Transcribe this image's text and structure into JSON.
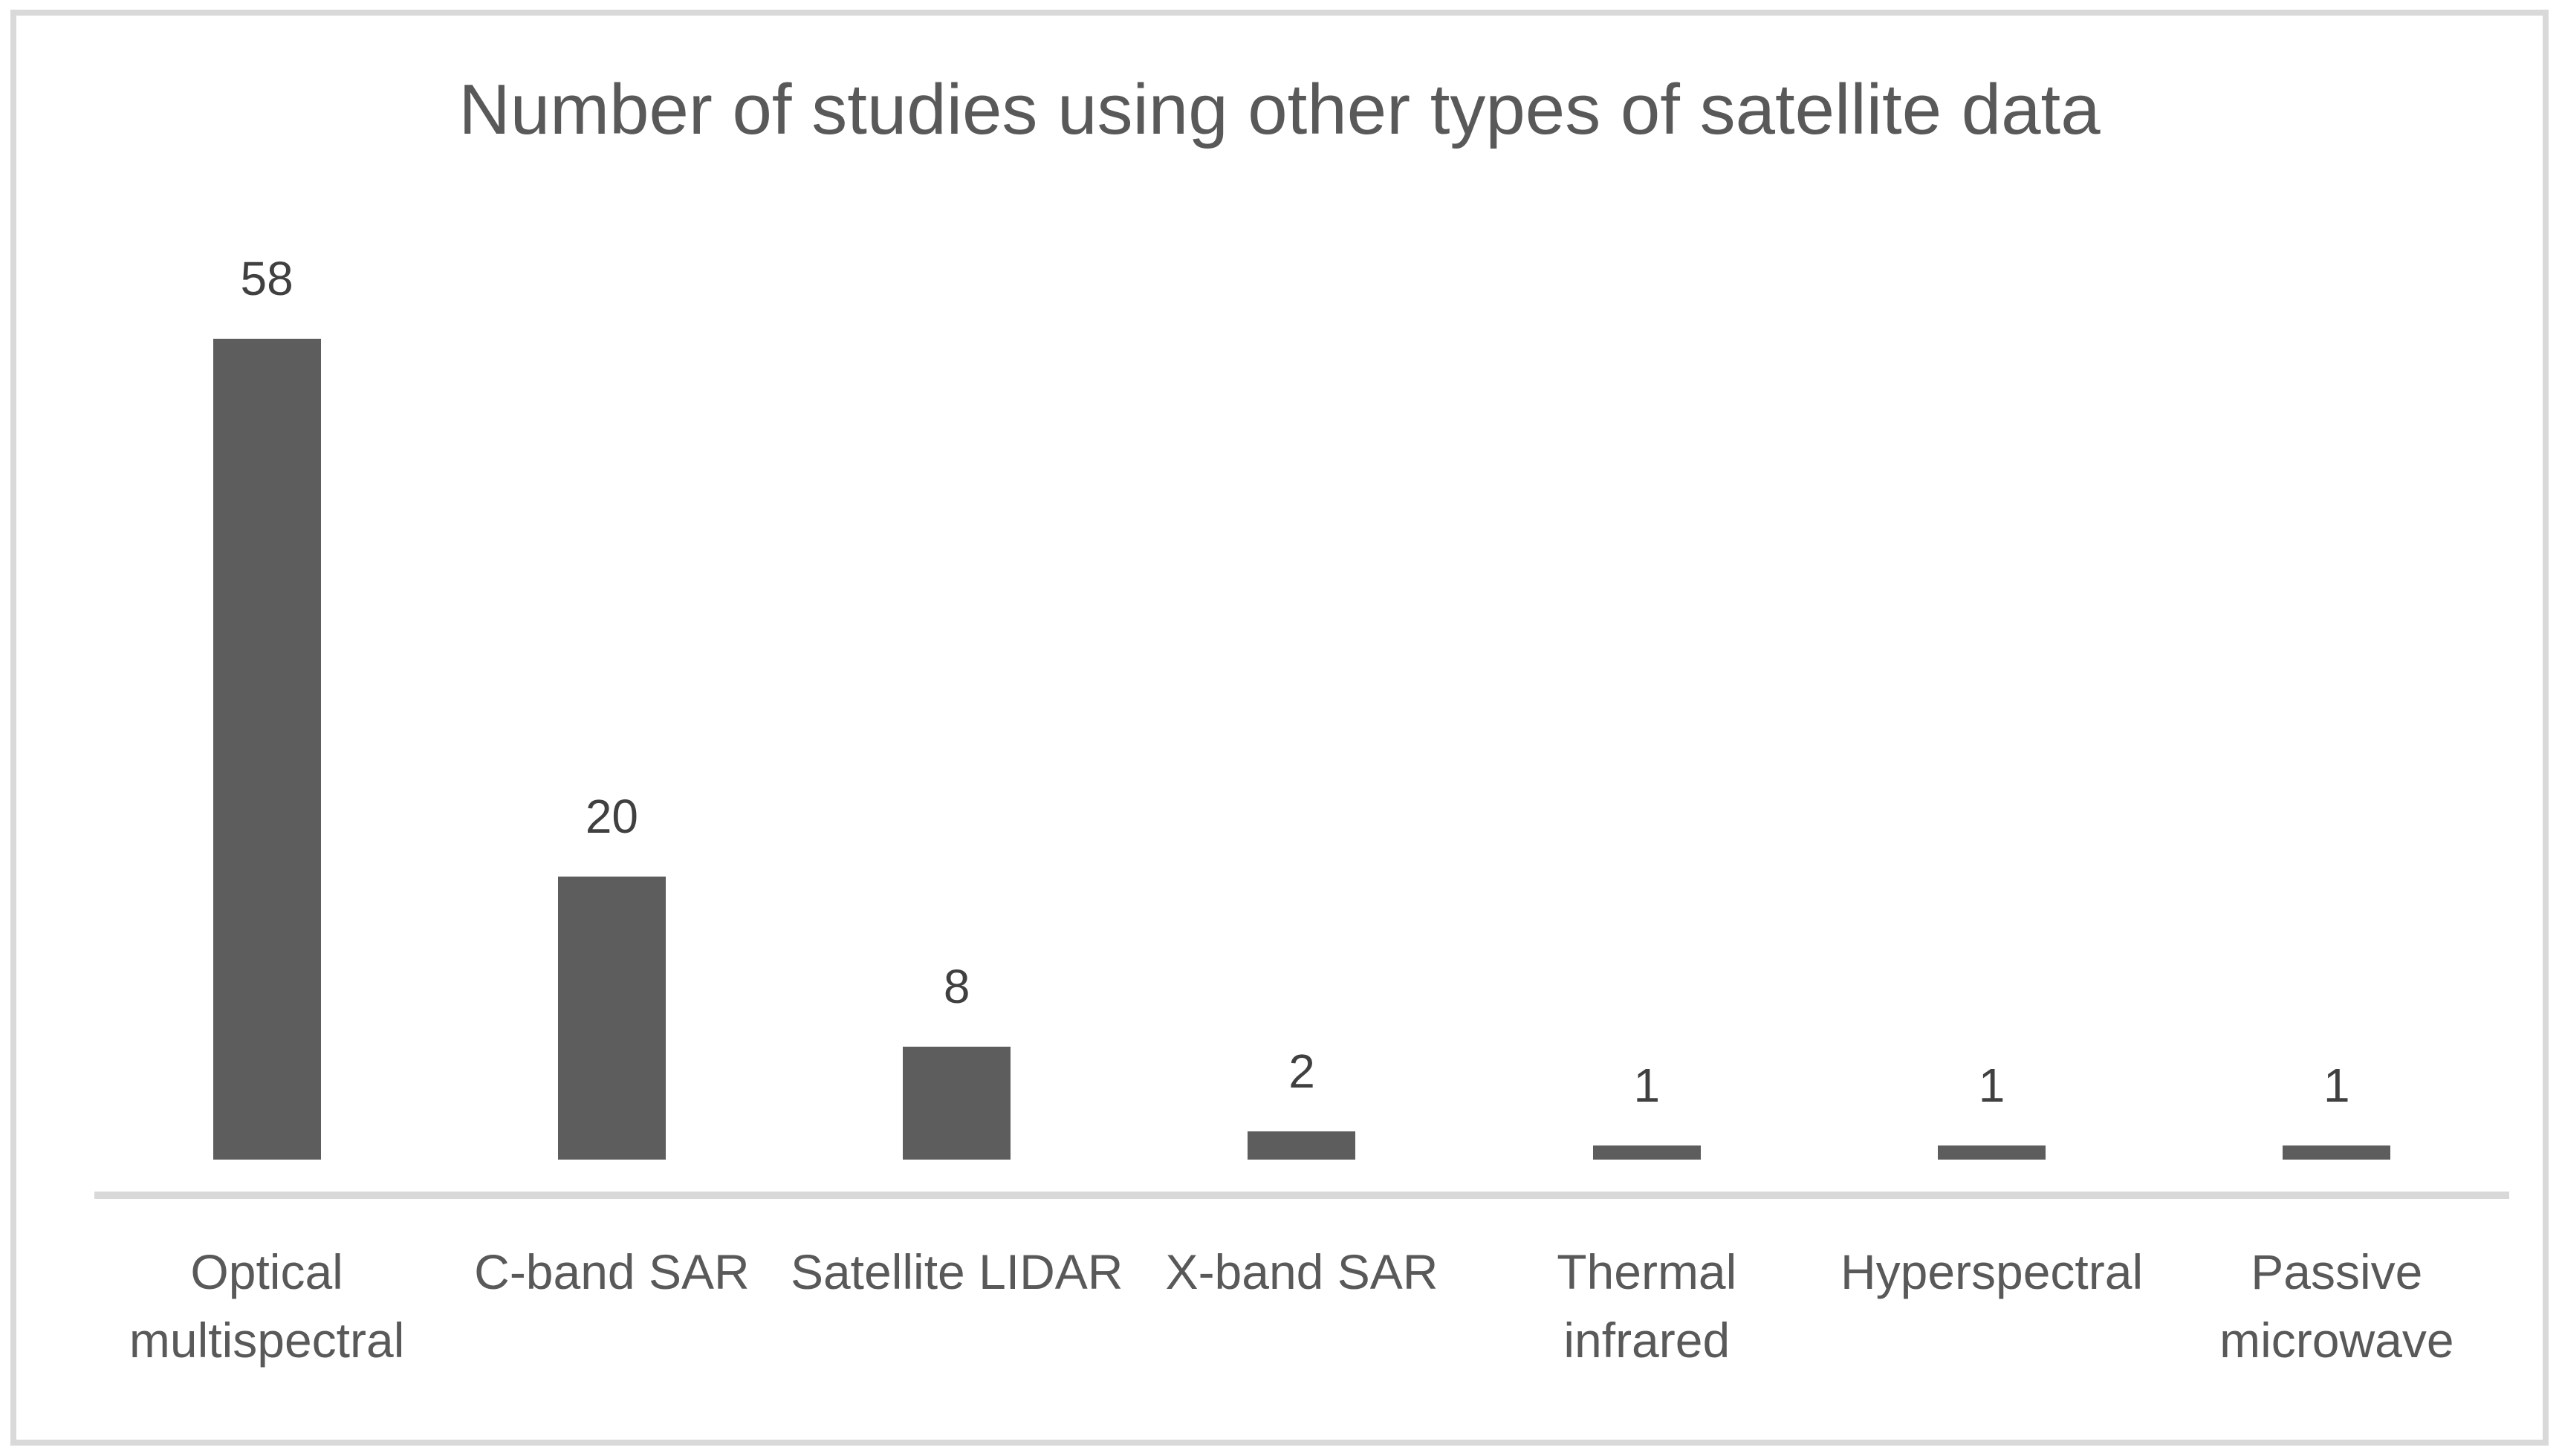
{
  "window": {
    "background": "#ffffff",
    "frame_border_color": "#d9d9d9"
  },
  "chart_data": {
    "type": "bar",
    "title": "Number of studies using other types of satellite data",
    "categories": [
      "Optical multispectral",
      "C-band SAR",
      "Satellite LIDAR",
      "X-band SAR",
      "Thermal infrared",
      "Hyperspectral",
      "Passive microwave"
    ],
    "values": [
      58,
      20,
      8,
      2,
      1,
      1,
      1
    ],
    "data_labels": [
      "58",
      "20",
      "8",
      "2",
      "1",
      "1",
      "1"
    ],
    "xlabel": "",
    "ylabel": "",
    "ylim": [
      0,
      58
    ],
    "grid": false,
    "legend": false,
    "bar_color": "#5d5d5d",
    "axis_line_color": "#d9d9d9",
    "title_color": "#595959",
    "data_label_color": "#404040",
    "category_label_color": "#595959"
  }
}
